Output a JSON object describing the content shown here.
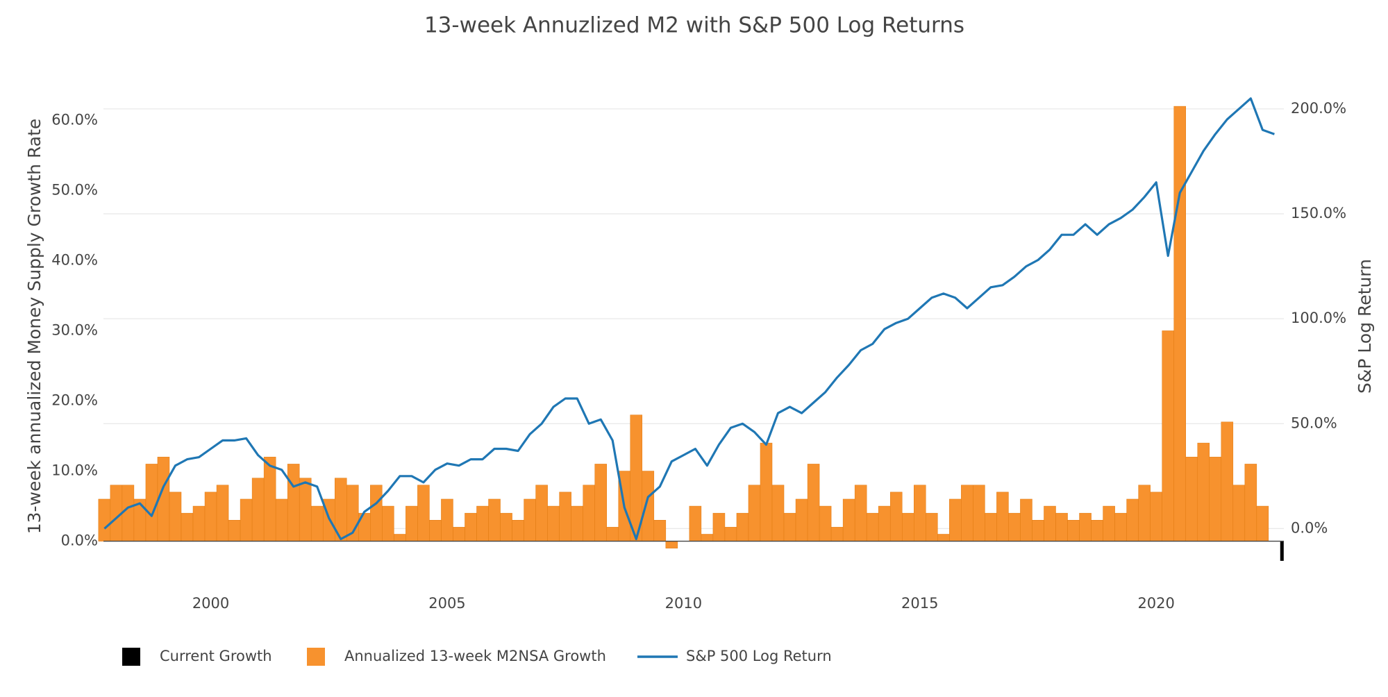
{
  "chart_data": {
    "type": "bar",
    "title": "13-week Annuzlized M2 with S&P 500 Log Returns",
    "y_label": "13-week annualized Money Supply Growth Rate",
    "y2_label": "S&P Log Return",
    "xlim": [
      1997.73,
      2022.7
    ],
    "xticks": [
      2000,
      2005,
      2010,
      2015,
      2020
    ],
    "ylim": [
      -4,
      63
    ],
    "yticks": [
      {
        "value": 0,
        "label": "0.0%"
      },
      {
        "value": 10,
        "label": "10.0%"
      },
      {
        "value": 20,
        "label": "20.0%"
      },
      {
        "value": 30,
        "label": "30.0%"
      },
      {
        "value": 40,
        "label": "40.0%"
      },
      {
        "value": 50,
        "label": "50.0%"
      },
      {
        "value": 60,
        "label": "60.0%"
      }
    ],
    "y2lim": [
      -19.4,
      204.6
    ],
    "y2ticks": [
      {
        "value": 0,
        "label": "0.0%"
      },
      {
        "value": 50,
        "label": "50.0%"
      },
      {
        "value": 100,
        "label": "100.0%"
      },
      {
        "value": 150,
        "label": "150.0%"
      },
      {
        "value": 200,
        "label": "200.0%"
      }
    ],
    "grid": true,
    "x": [
      1997.75,
      1998,
      1998.25,
      1998.5,
      1998.75,
      1999,
      1999.25,
      1999.5,
      1999.75,
      2000,
      2000.25,
      2000.5,
      2000.75,
      2001,
      2001.25,
      2001.5,
      2001.75,
      2002,
      2002.25,
      2002.5,
      2002.75,
      2003,
      2003.25,
      2003.5,
      2003.75,
      2004,
      2004.25,
      2004.5,
      2004.75,
      2005,
      2005.25,
      2005.5,
      2005.75,
      2006,
      2006.25,
      2006.5,
      2006.75,
      2007,
      2007.25,
      2007.5,
      2007.75,
      2008,
      2008.25,
      2008.5,
      2008.75,
      2009,
      2009.25,
      2009.5,
      2009.75,
      2010,
      2010.25,
      2010.5,
      2010.75,
      2011,
      2011.25,
      2011.5,
      2011.75,
      2012,
      2012.25,
      2012.5,
      2012.75,
      2013,
      2013.25,
      2013.5,
      2013.75,
      2014,
      2014.25,
      2014.5,
      2014.75,
      2015,
      2015.25,
      2015.5,
      2015.75,
      2016,
      2016.25,
      2016.5,
      2016.75,
      2017,
      2017.25,
      2017.5,
      2017.75,
      2018,
      2018.25,
      2018.5,
      2018.75,
      2019,
      2019.25,
      2019.5,
      2019.75,
      2020,
      2020.25,
      2020.5,
      2020.75,
      2021,
      2021.25,
      2021.5,
      2021.75,
      2022,
      2022.25,
      2022.5
    ],
    "series": [
      {
        "name": "Current Growth",
        "type": "bar",
        "color": "#000000",
        "x": [
          2022.66
        ],
        "values": [
          -2.8
        ]
      },
      {
        "name": "Annualized 13-week M2NSA Growth",
        "type": "bar",
        "color": "#f7922e",
        "values": [
          6,
          8,
          8,
          6,
          11,
          12,
          7,
          4,
          5,
          7,
          8,
          3,
          6,
          9,
          12,
          6,
          11,
          9,
          5,
          6,
          9,
          8,
          4,
          8,
          5,
          1,
          5,
          8,
          3,
          6,
          2,
          4,
          5,
          6,
          4,
          3,
          6,
          8,
          5,
          7,
          5,
          8,
          11,
          2,
          10,
          18,
          10,
          3,
          -1,
          0,
          5,
          1,
          4,
          2,
          4,
          8,
          14,
          8,
          4,
          6,
          11,
          5,
          2,
          6,
          8,
          4,
          5,
          7,
          4,
          8,
          4,
          1,
          6,
          8,
          8,
          4,
          7,
          4,
          6,
          3,
          5,
          4,
          3,
          4,
          3,
          5,
          4,
          6,
          8,
          7,
          30,
          62,
          12,
          14,
          12,
          17,
          8,
          11,
          5,
          0
        ]
      },
      {
        "name": "S&P 500 Log Return",
        "type": "line",
        "color": "#1f77b4",
        "axis": "y2",
        "values": [
          0,
          5,
          10,
          12,
          6,
          20,
          30,
          33,
          34,
          38,
          42,
          42,
          43,
          35,
          30,
          28,
          20,
          22,
          20,
          5,
          -5,
          -2,
          8,
          12,
          18,
          25,
          25,
          22,
          28,
          31,
          30,
          33,
          33,
          38,
          38,
          37,
          45,
          50,
          58,
          62,
          62,
          50,
          52,
          42,
          10,
          -5,
          15,
          20,
          32,
          35,
          38,
          30,
          40,
          48,
          50,
          46,
          40,
          55,
          58,
          55,
          60,
          65,
          72,
          78,
          85,
          88,
          95,
          98,
          100,
          105,
          110,
          112,
          110,
          105,
          110,
          115,
          116,
          120,
          125,
          128,
          133,
          140,
          140,
          145,
          140,
          145,
          148,
          152,
          158,
          165,
          130,
          160,
          170,
          180,
          188,
          195,
          200,
          205,
          190,
          188
        ]
      }
    ]
  }
}
